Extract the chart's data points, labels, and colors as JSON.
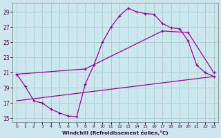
{
  "bg_color": "#cce8ee",
  "grid_color": "#aacccc",
  "line_color": "#990099",
  "xlabel": "Windchill (Refroidissement éolien,°C)",
  "xlim": [
    -0.5,
    23.5
  ],
  "ylim": [
    14.5,
    30.2
  ],
  "xticks": [
    0,
    1,
    2,
    3,
    4,
    5,
    6,
    7,
    8,
    9,
    10,
    11,
    12,
    13,
    14,
    15,
    16,
    17,
    18,
    19,
    20,
    21,
    22,
    23
  ],
  "yticks": [
    15,
    17,
    19,
    21,
    23,
    25,
    27,
    29
  ],
  "curve1_x": [
    0,
    1,
    2,
    3,
    4,
    5,
    6,
    7,
    8,
    9,
    10,
    11,
    12,
    13,
    14,
    15,
    16,
    17,
    18,
    19,
    20,
    21,
    22,
    23
  ],
  "curve1_y": [
    20.8,
    19.2,
    17.3,
    17.0,
    16.2,
    15.7,
    15.3,
    15.2,
    19.5,
    22.0,
    25.0,
    27.0,
    28.5,
    29.5,
    29.0,
    28.8,
    28.7,
    27.5,
    26.9,
    26.8,
    25.2,
    22.0,
    21.0,
    20.5
  ],
  "curve2_x": [
    0,
    8,
    17,
    20,
    23
  ],
  "curve2_y": [
    20.8,
    21.5,
    26.5,
    26.3,
    21.0
  ],
  "curve3_x": [
    0,
    23
  ],
  "curve3_y": [
    17.3,
    20.5
  ]
}
